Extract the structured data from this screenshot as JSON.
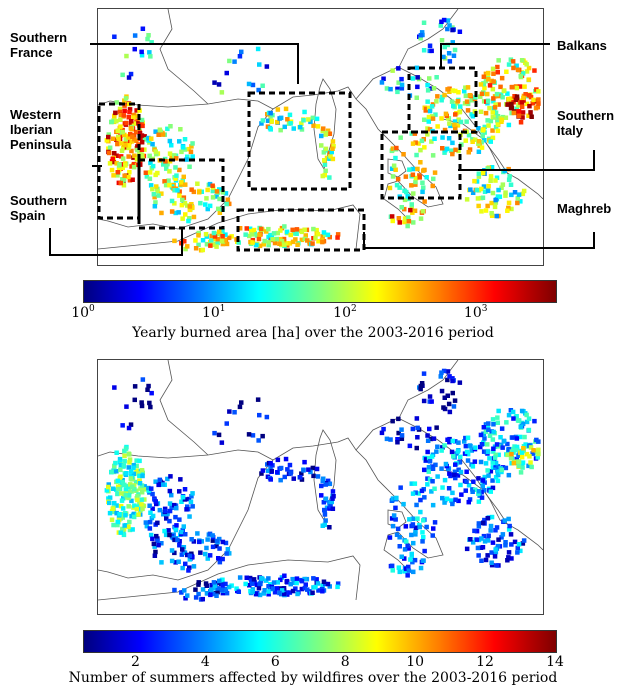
{
  "top_map": {
    "labels": {
      "southern_france": "Southern\nFrance",
      "western_iberia": "Western\nIberian\nPeninsula",
      "southern_spain": "Southern\nSpain",
      "balkans": "Balkans",
      "southern_italy": "Southern\nItaly",
      "maghreb": "Maghreb"
    },
    "colorbar": {
      "label": "Yearly burned area [ha] over the 2003-2016 period",
      "ticks": [
        {
          "base": "10",
          "exp": "0"
        },
        {
          "base": "10",
          "exp": "1"
        },
        {
          "base": "10",
          "exp": "2"
        },
        {
          "base": "10",
          "exp": "3"
        }
      ],
      "scale": "log"
    }
  },
  "bottom_map": {
    "colorbar": {
      "label": "Number of summers affected by wildfires over the 2003-2016 period",
      "ticks": [
        "2",
        "4",
        "6",
        "8",
        "10",
        "12",
        "14"
      ],
      "range": [
        0.5,
        14
      ]
    }
  },
  "colormap": "jet"
}
